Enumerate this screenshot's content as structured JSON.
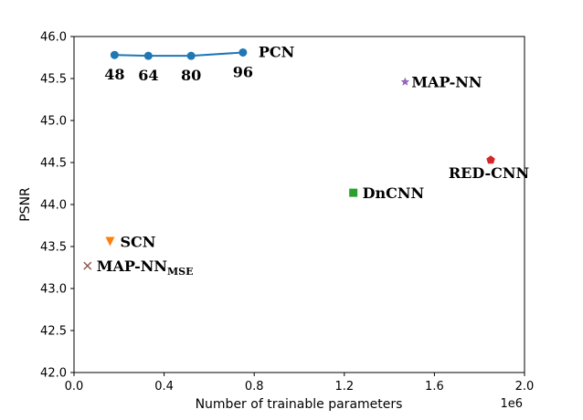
{
  "chart_data": {
    "type": "scatter",
    "xlabel": "Number of trainable parameters",
    "ylabel": "PSNR",
    "x_offset_label": "1e6",
    "xlim": [
      0.0,
      2.0
    ],
    "ylim": [
      42.0,
      46.0
    ],
    "x_ticks": [
      "0.0",
      "0.4",
      "0.8",
      "1.2",
      "1.6",
      "2.0"
    ],
    "y_ticks": [
      "42.0",
      "42.5",
      "43.0",
      "43.5",
      "44.0",
      "44.5",
      "45.0",
      "45.5",
      "46.0"
    ],
    "grid": false,
    "series": [
      {
        "name": "PCN",
        "marker": "circle",
        "line": true,
        "color": "#1f77b4",
        "points": [
          {
            "x": 0.18,
            "y": 45.78,
            "label": "48"
          },
          {
            "x": 0.33,
            "y": 45.77,
            "label": "64"
          },
          {
            "x": 0.52,
            "y": 45.77,
            "label": "80"
          },
          {
            "x": 0.75,
            "y": 45.81,
            "label": "96"
          }
        ]
      },
      {
        "name": "SCN",
        "marker": "triangle-down",
        "color": "#ff7f0e",
        "points": [
          {
            "x": 0.16,
            "y": 43.56
          }
        ]
      },
      {
        "name": "MAP-NN",
        "name_sub": "MSE",
        "marker": "x",
        "color": "#8c564b",
        "points": [
          {
            "x": 0.06,
            "y": 43.27
          }
        ]
      },
      {
        "name": "MAP-NN",
        "marker": "star",
        "color": "#9467bd",
        "points": [
          {
            "x": 1.47,
            "y": 45.46
          }
        ]
      },
      {
        "name": "DnCNN",
        "marker": "square",
        "color": "#2ca02c",
        "points": [
          {
            "x": 1.24,
            "y": 44.14
          }
        ]
      },
      {
        "name": "RED-CNN",
        "marker": "pentagon",
        "color": "#d62728",
        "points": [
          {
            "x": 1.85,
            "y": 44.53
          }
        ]
      }
    ]
  }
}
